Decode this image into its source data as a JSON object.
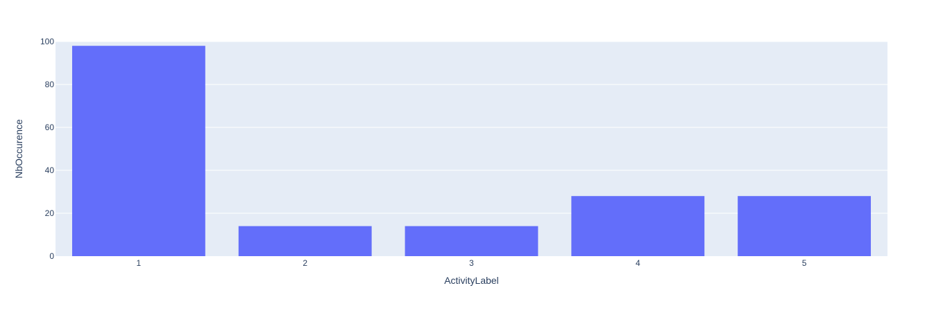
{
  "chart_data": {
    "type": "bar",
    "categories": [
      "1",
      "2",
      "3",
      "4",
      "5"
    ],
    "values": [
      98,
      14,
      14,
      28,
      28
    ],
    "title": "",
    "xlabel": "ActivityLabel",
    "ylabel": "NbOccurence",
    "ylim": [
      0,
      100
    ],
    "yticks": [
      0,
      20,
      40,
      60,
      80,
      100
    ],
    "grid": true,
    "legend": "none",
    "colors": {
      "bar": "#636efa",
      "plot_background": "#e5ecf6",
      "grid": "#ffffff",
      "text": "#2a3f5f"
    }
  }
}
